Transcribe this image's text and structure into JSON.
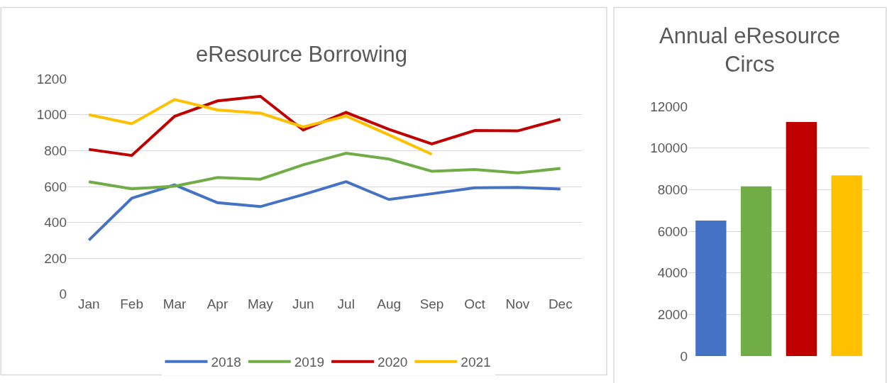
{
  "chart_data": [
    {
      "type": "line",
      "title": "eResource Borrowing",
      "categories": [
        "Jan",
        "Feb",
        "Mar",
        "Apr",
        "May",
        "Jun",
        "Jul",
        "Aug",
        "Sep",
        "Oct",
        "Nov",
        "Dec"
      ],
      "series": [
        {
          "name": "2018",
          "color": "#4472c4",
          "values": [
            301,
            535,
            609,
            510,
            488,
            555,
            627,
            528,
            560,
            593,
            595,
            586
          ]
        },
        {
          "name": "2019",
          "color": "#70ad47",
          "values": [
            627,
            587,
            602,
            650,
            641,
            721,
            786,
            753,
            685,
            695,
            676,
            701
          ]
        },
        {
          "name": "2020",
          "color": "#c00000",
          "values": [
            807,
            773,
            991,
            1077,
            1103,
            915,
            1013,
            919,
            838,
            912,
            910,
            975
          ]
        },
        {
          "name": "2021",
          "color": "#ffc000",
          "values": [
            1000,
            950,
            1085,
            1027,
            1009,
            932,
            993,
            888,
            780,
            null,
            null,
            null
          ]
        }
      ],
      "ylim": [
        0,
        1200
      ],
      "yticks": [
        0,
        200,
        400,
        600,
        800,
        1000,
        1200
      ],
      "grid": "y",
      "legend": "bottom",
      "marker": "none",
      "line_style": "solid"
    },
    {
      "type": "bar",
      "title": "Annual eResource Circs",
      "categories": [
        null,
        null,
        null,
        null
      ],
      "values": [
        6510,
        8157,
        11253,
        8684
      ],
      "colors": [
        "#4472c4",
        "#70ad47",
        "#c00000",
        "#ffc000"
      ],
      "ylim": [
        0,
        12000
      ],
      "yticks": [
        0,
        2000,
        4000,
        6000,
        8000,
        10000,
        12000
      ],
      "grid": "y",
      "legend": false
    }
  ]
}
